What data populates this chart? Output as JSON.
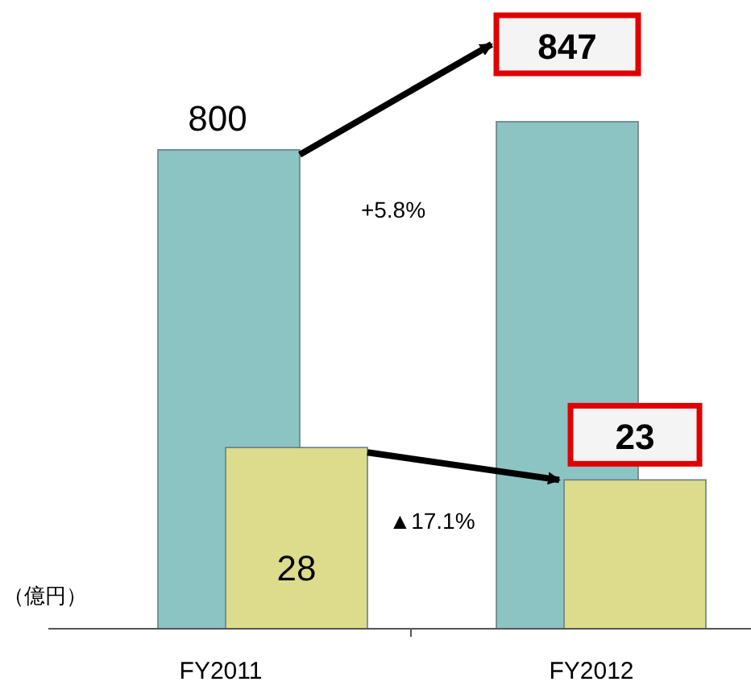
{
  "chart_data": {
    "type": "bar",
    "categories": [
      "FY2011",
      "FY2012"
    ],
    "series": [
      {
        "color": "#8cc4c4",
        "values": [
          800,
          847
        ]
      },
      {
        "color": "#dcdc8c",
        "values": [
          28,
          23
        ],
        "axis": "y2"
      }
    ],
    "tick_labels": "x",
    "data_labels": true,
    "annotations": [
      "（億円）",
      "+5.8%",
      "▲17.1%"
    ]
  }
}
